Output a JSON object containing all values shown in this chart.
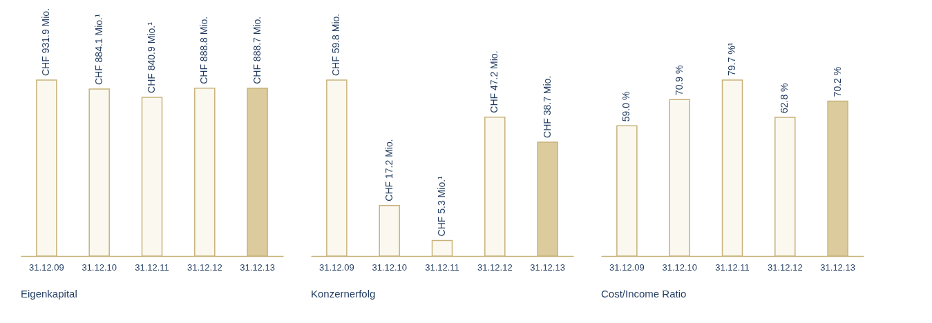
{
  "chart_data": [
    {
      "type": "bar",
      "title": "Eigenkapital",
      "categories": [
        "31.12.09",
        "31.12.10",
        "31.12.11",
        "31.12.12",
        "31.12.13"
      ],
      "values": [
        931.9,
        884.1,
        840.9,
        888.8,
        888.7
      ],
      "value_labels": [
        "CHF 931.9  Mio.",
        "CHF 884.1 Mio.¹",
        "CHF 840.9 Mio.¹",
        "CHF 888.8 Mio.",
        "CHF 888.7  Mio."
      ],
      "colors": [
        "#fbf8f0",
        "#fbf8f0",
        "#fbf8f0",
        "#fbf8f0",
        "#dccb9c"
      ],
      "ylim": [
        0,
        931.9
      ]
    },
    {
      "type": "bar",
      "title": "Konzernerfolg",
      "categories": [
        "31.12.09",
        "31.12.10",
        "31.12.11",
        "31.12.12",
        "31.12.13"
      ],
      "values": [
        59.8,
        17.2,
        5.3,
        47.2,
        38.7
      ],
      "value_labels": [
        "CHF 59.8  Mio.",
        "CHF 17.2 Mio.",
        "CHF 5.3 Mio.¹",
        "CHF 47.2 Mio.",
        "CHF 38.7 Mio."
      ],
      "colors": [
        "#fbf8f0",
        "#fbf8f0",
        "#fbf8f0",
        "#fbf8f0",
        "#dccb9c"
      ],
      "ylim": [
        0,
        59.8
      ]
    },
    {
      "type": "bar",
      "title": "Cost/Income Ratio",
      "categories": [
        "31.12.09",
        "31.12.10",
        "31.12.11",
        "31.12.12",
        "31.12.13"
      ],
      "values": [
        59.0,
        70.9,
        79.7,
        62.8,
        70.2
      ],
      "value_labels": [
        "59.0 %",
        "70.9 %",
        "79.7 %¹",
        "62.8 %",
        "70.2 %"
      ],
      "colors": [
        "#fbf8f0",
        "#fbf8f0",
        "#fbf8f0",
        "#fbf8f0",
        "#dccb9c"
      ],
      "ylim": [
        0,
        79.7
      ]
    }
  ]
}
